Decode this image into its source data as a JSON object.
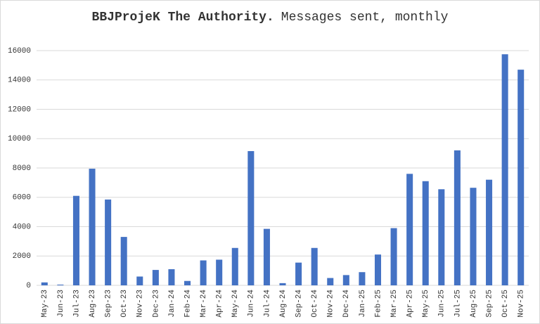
{
  "chart_data": {
    "type": "bar",
    "title": "BBJProjeK The Authority.",
    "subtitle": "Messages sent, monthly",
    "categories": [
      "May-23",
      "Jun-23",
      "Jul-23",
      "Aug-23",
      "Sep-23",
      "Oct-23",
      "Nov-23",
      "Dec-23",
      "Jan-24",
      "Feb-24",
      "Mar-24",
      "Apr-24",
      "May-24",
      "Jun-24",
      "Jul-24",
      "Aug-24",
      "Sep-24",
      "Oct-24",
      "Nov-24",
      "Dec-24",
      "Jan-25",
      "Feb-25",
      "Mar-25",
      "Apr-25",
      "May-25",
      "Jun-25",
      "Jul-25",
      "Aug-25",
      "Sep-25",
      "Oct-25",
      "Nov-25"
    ],
    "values": [
      200,
      50,
      6100,
      7950,
      5850,
      3300,
      600,
      1050,
      1100,
      300,
      1700,
      1750,
      2550,
      9150,
      3850,
      150,
      1550,
      2550,
      500,
      700,
      900,
      2100,
      3900,
      7600,
      7100,
      6550,
      9200,
      6650,
      7200,
      15750,
      14700
    ],
    "color": "#4472c4",
    "ylim": [
      0,
      16000
    ],
    "yticks": [
      0,
      2000,
      4000,
      6000,
      8000,
      10000,
      12000,
      14000,
      16000
    ],
    "grid": true
  }
}
